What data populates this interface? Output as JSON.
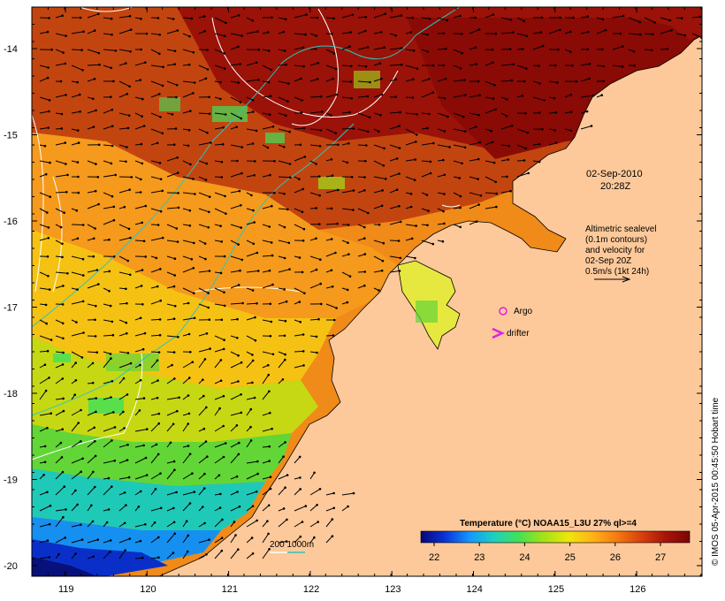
{
  "map": {
    "timestamp": {
      "date": "02-Sep-2010",
      "time": "20:28Z"
    },
    "altimetry_legend": {
      "lines": [
        "Altimetric sealevel",
        "(0.1m contours)",
        "and velocity for",
        "02-Sep 20Z",
        "0.5m/s (1kt 24h)"
      ]
    },
    "markers": {
      "argo_label": "Argo",
      "drifter_label": "drifter"
    },
    "bathymetry_legend": {
      "label": "200  1000m"
    },
    "colorbar": {
      "title": "Temperature (°C) NOAA15_L3U 27% ql>=4",
      "ticks": [
        "22",
        "23",
        "24",
        "25",
        "26",
        "27"
      ]
    },
    "credit": "© IMOS 05-Apr-2015 00:45:50 Hobart time",
    "axes": {
      "lon_ticks": [
        "119",
        "120",
        "121",
        "122",
        "123",
        "124",
        "125",
        "126"
      ],
      "lat_ticks": [
        "-14",
        "-15",
        "-16",
        "-17",
        "-18",
        "-19",
        "-20"
      ]
    },
    "colors": {
      "land": "#fdc99a",
      "contour": "#ffffff",
      "bathymetry": "#2fc4bc",
      "argo": "#e020e0",
      "drifter": "#e020e0",
      "vector": "#000000",
      "colorbar_stops": [
        "#06077a",
        "#0a33d6",
        "#1496ff",
        "#1dd0c0",
        "#3fe15a",
        "#9ee21a",
        "#eee60a",
        "#ffb218",
        "#f57a10",
        "#d8400c",
        "#a6150a",
        "#7d0505"
      ]
    }
  }
}
